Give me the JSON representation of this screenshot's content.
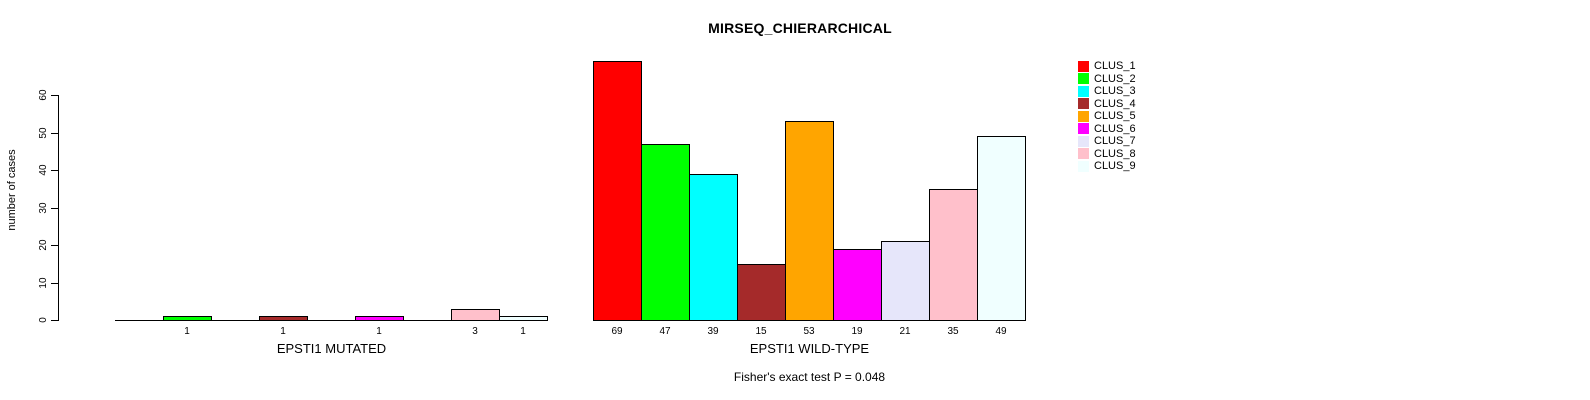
{
  "title": "MIRSEQ_CHIERARCHICAL",
  "note": "Fisher's exact test P = 0.048",
  "y_axis": {
    "label": "number of cases",
    "ticks": [
      "0",
      "10",
      "20",
      "30",
      "40",
      "50",
      "60"
    ]
  },
  "legend": {
    "entries": [
      {
        "label": "CLUS_1",
        "color": "#FF0000"
      },
      {
        "label": "CLUS_2",
        "color": "#00FF00"
      },
      {
        "label": "CLUS_3",
        "color": "#00FFFF"
      },
      {
        "label": "CLUS_4",
        "color": "#A52A2A"
      },
      {
        "label": "CLUS_5",
        "color": "#FFA500"
      },
      {
        "label": "CLUS_6",
        "color": "#FF00FF"
      },
      {
        "label": "CLUS_7",
        "color": "#E6E6FA"
      },
      {
        "label": "CLUS_8",
        "color": "#FFC0CB"
      },
      {
        "label": "CLUS_9",
        "color": "#F0FFFF"
      }
    ]
  },
  "chart_data": {
    "type": "bar",
    "title": "MIRSEQ_CHIERARCHICAL",
    "xlabel": "",
    "ylabel": "number of cases",
    "ylim": [
      0,
      60
    ],
    "grid": false,
    "legend_position": "right",
    "annotation": "Fisher's exact test P = 0.048",
    "categories": [
      "CLUS_1",
      "CLUS_2",
      "CLUS_3",
      "CLUS_4",
      "CLUS_5",
      "CLUS_6",
      "CLUS_7",
      "CLUS_8",
      "CLUS_9"
    ],
    "colors": [
      "#FF0000",
      "#00FF00",
      "#00FFFF",
      "#A52A2A",
      "#FFA500",
      "#FF00FF",
      "#E6E6FA",
      "#FFC0CB",
      "#F0FFFF"
    ],
    "groups": [
      {
        "label": "EPSTI1 MUTATED",
        "values": [
          0,
          1,
          0,
          1,
          0,
          1,
          0,
          3,
          1
        ],
        "bar_labels": [
          "",
          "1",
          "",
          "1",
          "",
          "1",
          "",
          "3",
          "1"
        ]
      },
      {
        "label": "EPSTI1 WILD-TYPE",
        "values": [
          69,
          47,
          39,
          15,
          53,
          19,
          21,
          35,
          49
        ],
        "bar_labels": [
          "69",
          "47",
          "39",
          "15",
          "53",
          "19",
          "21",
          "35",
          "49"
        ]
      }
    ]
  }
}
